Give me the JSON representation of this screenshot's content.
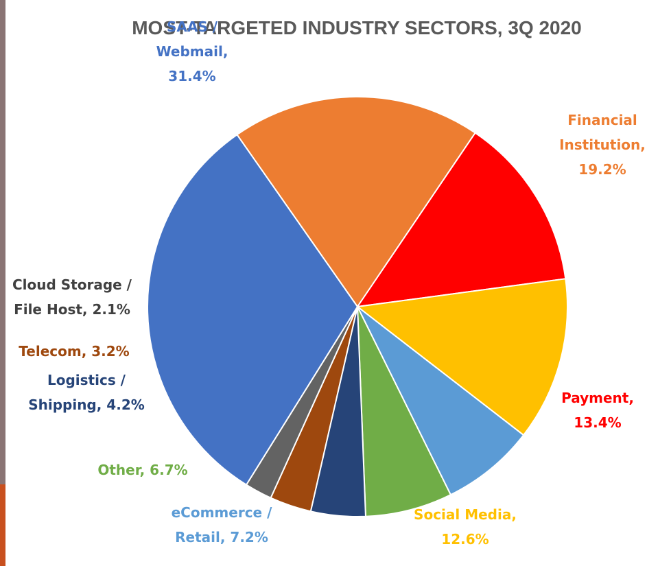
{
  "chart_data": {
    "type": "pie",
    "title": "MOST-TARGETED INDUSTRY SECTORS, 3Q 2020",
    "slices": [
      {
        "label_lines": [
          "Financial",
          "Institution,",
          "19.2%"
        ],
        "value": 19.2,
        "color": "#ED7D31"
      },
      {
        "label_lines": [
          "Payment,",
          "13.4%"
        ],
        "value": 13.4,
        "color": "#FF0000"
      },
      {
        "label_lines": [
          "Social Media,",
          "12.6%"
        ],
        "value": 12.6,
        "color": "#FFC000"
      },
      {
        "label_lines": [
          "eCommerce /",
          "Retail, 7.2%"
        ],
        "value": 7.2,
        "color": "#5B9BD5"
      },
      {
        "label_lines": [
          "Other, 6.7%"
        ],
        "value": 6.7,
        "color": "#70AD47"
      },
      {
        "label_lines": [
          "Logistics /",
          "Shipping, 4.2%"
        ],
        "value": 4.2,
        "color": "#264478"
      },
      {
        "label_lines": [
          "Telecom, 3.2%"
        ],
        "value": 3.2,
        "color": "#9E480E"
      },
      {
        "label_lines": [
          "Cloud Storage /",
          "File Host, 2.1%"
        ],
        "value": 2.1,
        "color": "#636363"
      },
      {
        "label_lines": [
          "SAAS /",
          "Webmail,",
          "31.4%"
        ],
        "value": 31.4,
        "color": "#4472C4"
      }
    ],
    "label_colors": [
      "#ED7D31",
      "#FF0000",
      "#FFC000",
      "#5B9BD5",
      "#70AD47",
      "#264478",
      "#9E480E",
      "#404040",
      "#4472C4"
    ],
    "legend": "none"
  }
}
